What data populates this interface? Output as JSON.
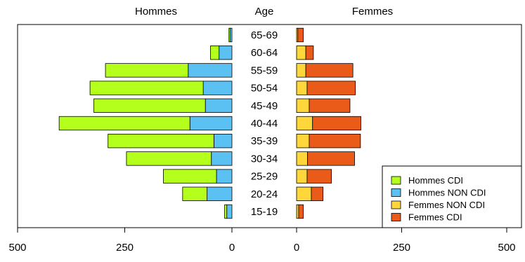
{
  "chart_data": {
    "type": "bar",
    "subtype": "population-pyramid",
    "headers": {
      "left": "Hommes",
      "center": "Age",
      "right": "Femmes"
    },
    "categories": [
      "15-19",
      "20-24",
      "25-29",
      "30-34",
      "35-39",
      "40-44",
      "45-49",
      "50-54",
      "55-59",
      "60-64",
      "65-69"
    ],
    "left_axis": {
      "ticks": [
        500,
        250,
        0
      ],
      "range": [
        500,
        0
      ],
      "direction": "reversed"
    },
    "right_axis": {
      "ticks": [
        0,
        250,
        500
      ],
      "range": [
        0,
        500
      ]
    },
    "series": [
      {
        "name": "Hommes NON CDI",
        "side": "left",
        "color": "#5bc0f2",
        "values": [
          12,
          58,
          36,
          48,
          42,
          98,
          62,
          67,
          102,
          30,
          4
        ]
      },
      {
        "name": "Hommes CDI",
        "side": "left",
        "color": "#b4ff1c",
        "values": [
          5,
          57,
          124,
          198,
          247,
          305,
          260,
          264,
          193,
          20,
          3
        ]
      },
      {
        "name": "Femmes NON CDI",
        "side": "right",
        "color": "#ffd73a",
        "values": [
          5,
          35,
          25,
          26,
          30,
          38,
          30,
          25,
          22,
          22,
          3
        ]
      },
      {
        "name": "Femmes CDI",
        "side": "right",
        "color": "#ea5a18",
        "values": [
          11,
          28,
          58,
          112,
          122,
          115,
          97,
          115,
          112,
          18,
          13
        ]
      }
    ],
    "legend": {
      "position": "bottom-right",
      "entries": [
        {
          "label": "Hommes CDI",
          "color": "#b4ff1c"
        },
        {
          "label": "Hommes NON CDI",
          "color": "#5bc0f2"
        },
        {
          "label": "Femmes NON CDI",
          "color": "#ffd73a"
        },
        {
          "label": "Femmes CDI",
          "color": "#ea5a18"
        }
      ]
    },
    "grid": false
  }
}
